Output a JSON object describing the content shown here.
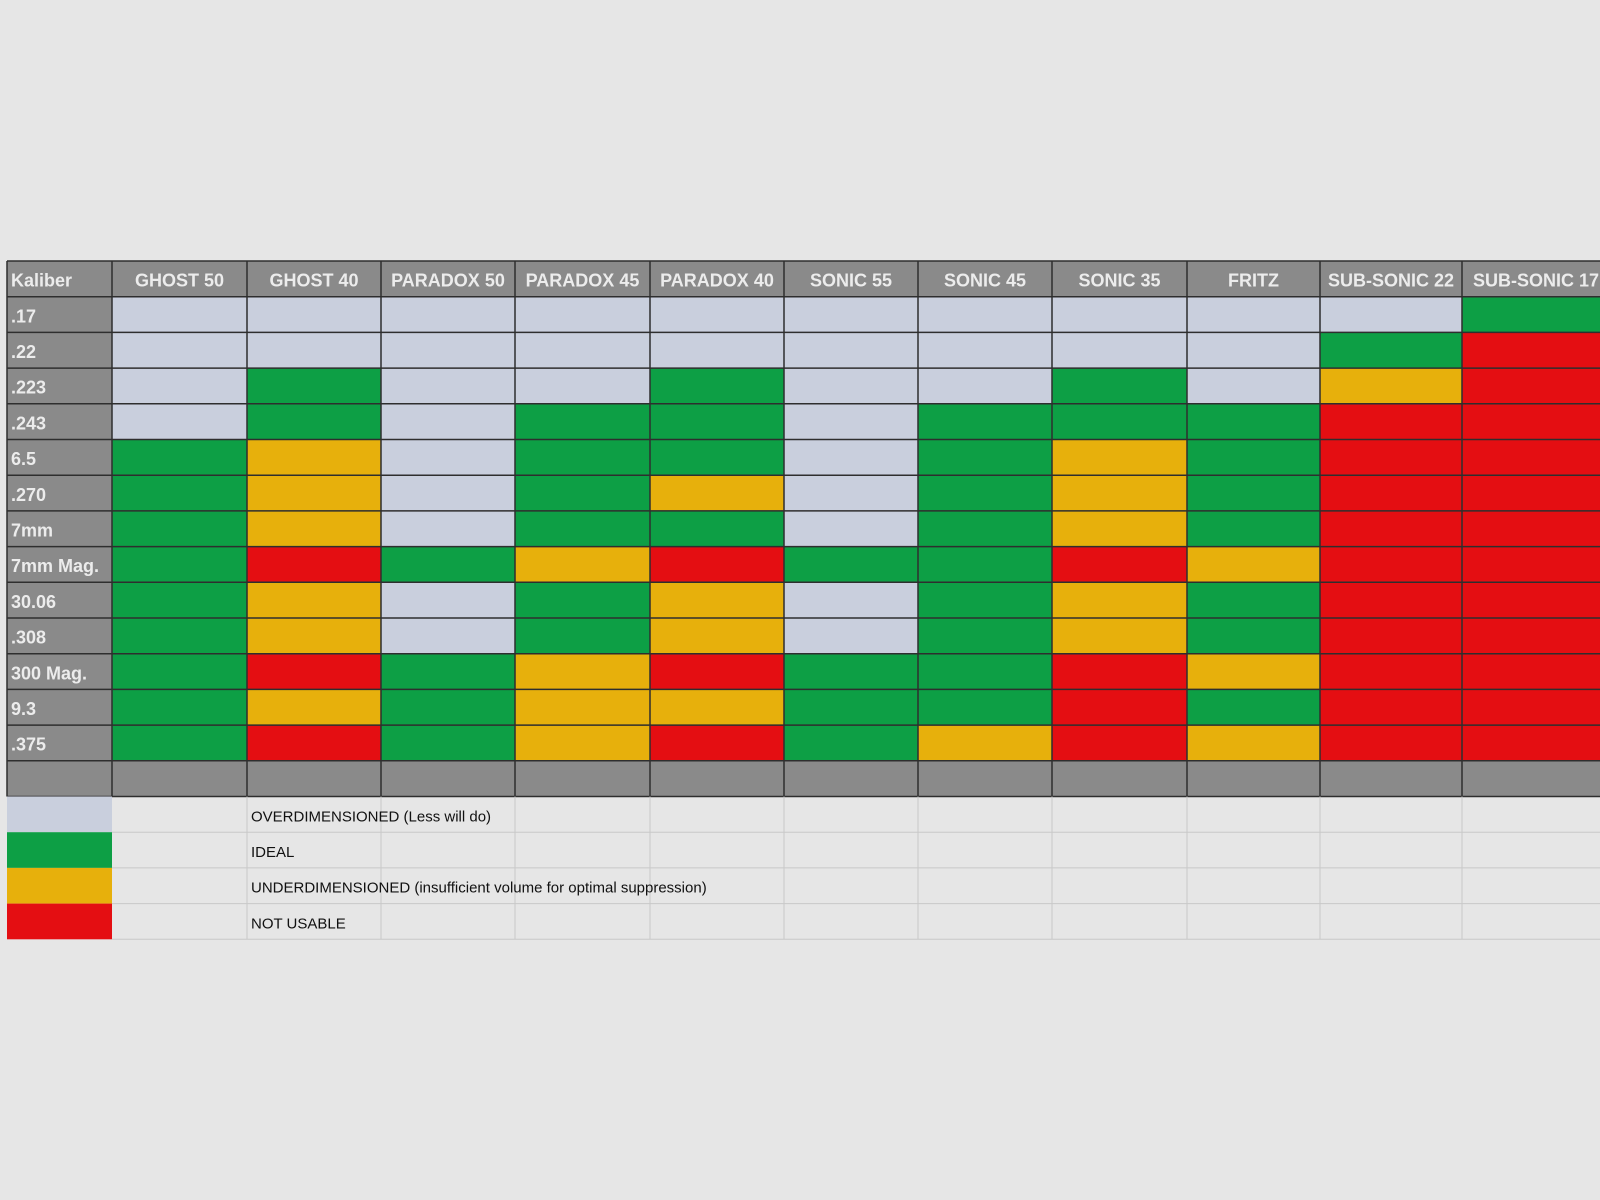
{
  "table": {
    "header": [
      "Kaliber",
      "GHOST 50",
      "GHOST 40",
      "PARADOX 50",
      "PARADOX 45",
      "PARADOX 40",
      "SONIC 55",
      "SONIC 45",
      "SONIC 35",
      "FRITZ",
      "SUB-SONIC 22",
      "SUB-SONIC 17"
    ],
    "rows": [
      {
        "label": ".17",
        "cells": [
          0,
          0,
          0,
          0,
          0,
          0,
          0,
          0,
          0,
          0,
          1
        ]
      },
      {
        "label": ".22",
        "cells": [
          0,
          0,
          0,
          0,
          0,
          0,
          0,
          0,
          0,
          1,
          3
        ]
      },
      {
        "label": ".223",
        "cells": [
          0,
          1,
          0,
          0,
          1,
          0,
          0,
          1,
          0,
          2,
          3
        ]
      },
      {
        "label": ".243",
        "cells": [
          0,
          1,
          0,
          1,
          1,
          0,
          1,
          1,
          1,
          3,
          3
        ]
      },
      {
        "label": "6.5",
        "cells": [
          1,
          2,
          0,
          1,
          1,
          0,
          1,
          2,
          1,
          3,
          3
        ]
      },
      {
        "label": ".270",
        "cells": [
          1,
          2,
          0,
          1,
          2,
          0,
          1,
          2,
          1,
          3,
          3
        ]
      },
      {
        "label": "7mm",
        "cells": [
          1,
          2,
          0,
          1,
          1,
          0,
          1,
          2,
          1,
          3,
          3
        ]
      },
      {
        "label": "7mm Mag.",
        "cells": [
          1,
          3,
          1,
          2,
          3,
          1,
          1,
          3,
          2,
          3,
          3
        ]
      },
      {
        "label": "30.06",
        "cells": [
          1,
          2,
          0,
          1,
          2,
          0,
          1,
          2,
          1,
          3,
          3
        ]
      },
      {
        "label": ".308",
        "cells": [
          1,
          2,
          0,
          1,
          2,
          0,
          1,
          2,
          1,
          3,
          3
        ]
      },
      {
        "label": "300 Mag.",
        "cells": [
          1,
          3,
          1,
          2,
          3,
          1,
          1,
          3,
          2,
          3,
          3
        ]
      },
      {
        "label": "9.3",
        "cells": [
          1,
          2,
          1,
          2,
          2,
          1,
          1,
          3,
          1,
          3,
          3
        ]
      },
      {
        "label": ".375",
        "cells": [
          1,
          3,
          1,
          2,
          3,
          1,
          2,
          3,
          2,
          3,
          3
        ]
      }
    ]
  },
  "legend": [
    {
      "color": "#c9cfdd",
      "label": "OVERDIMENSIONED (Less will do)"
    },
    {
      "color": "#0d9f45",
      "label": "IDEAL"
    },
    {
      "color": "#e7b00c",
      "label": "UNDERDIMENSIONED (insufficient volume for optimal suppression)"
    },
    {
      "color": "#e40e12",
      "label": "NOT USABLE"
    }
  ]
}
